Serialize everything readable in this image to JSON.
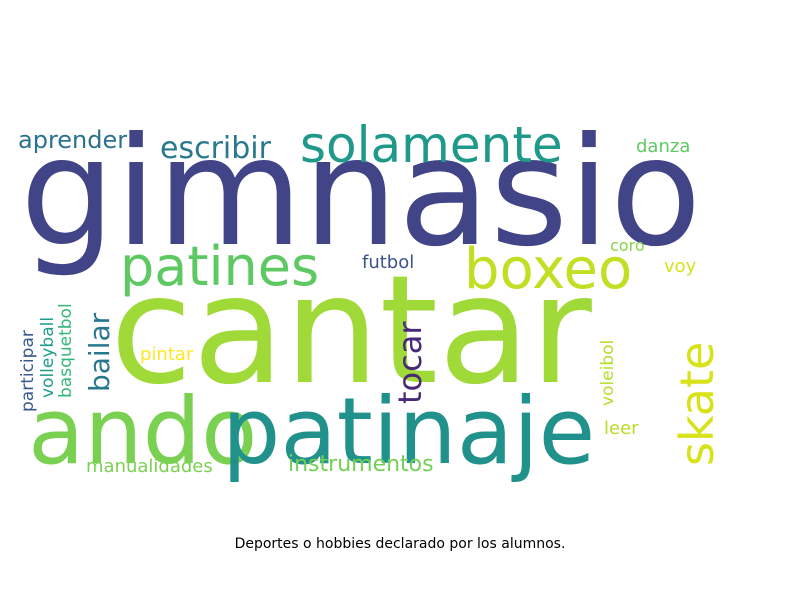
{
  "caption": "Deportes o hobbies declarado por los alumnos.",
  "words": {
    "gimnasio": {
      "text": "gimnasio",
      "color": "#414487"
    },
    "cantar": {
      "text": "cantar",
      "color": "#a0da39"
    },
    "ando": {
      "text": "ando",
      "color": "#7ad151"
    },
    "patinaje": {
      "text": "patinaje",
      "color": "#21918c"
    },
    "solamente": {
      "text": "solamente",
      "color": "#1f9a8a"
    },
    "patines": {
      "text": "patines",
      "color": "#5ec962"
    },
    "boxeo": {
      "text": "boxeo",
      "color": "#c2df23"
    },
    "escribir": {
      "text": "escribir",
      "color": "#2a788e"
    },
    "aprender": {
      "text": "aprender",
      "color": "#2c728e"
    },
    "danza": {
      "text": "danza",
      "color": "#5ec962"
    },
    "coro": {
      "text": "coro",
      "color": "#86d549"
    },
    "voy": {
      "text": "voy",
      "color": "#d8e219"
    },
    "futbol": {
      "text": "futbol",
      "color": "#3b528b"
    },
    "pintar": {
      "text": "pintar",
      "color": "#fde725"
    },
    "leer": {
      "text": "leer",
      "color": "#b5de2b"
    },
    "manualidades": {
      "text": "manualidades",
      "color": "#7ad151"
    },
    "instrumentos": {
      "text": "instrumentos",
      "color": "#73d056"
    },
    "bailar": {
      "text": "bailar",
      "color": "#2a788e"
    },
    "tocar": {
      "text": "tocar",
      "color": "#482878"
    },
    "skate": {
      "text": "skate",
      "color": "#d8e219"
    },
    "basquetbol": {
      "text": "basquetbol",
      "color": "#35b779"
    },
    "volleyball": {
      "text": "volleyball",
      "color": "#1f9e89"
    },
    "participar": {
      "text": "participar",
      "color": "#38598c"
    },
    "voleibol": {
      "text": "voleibol",
      "color": "#b5de2b"
    }
  }
}
